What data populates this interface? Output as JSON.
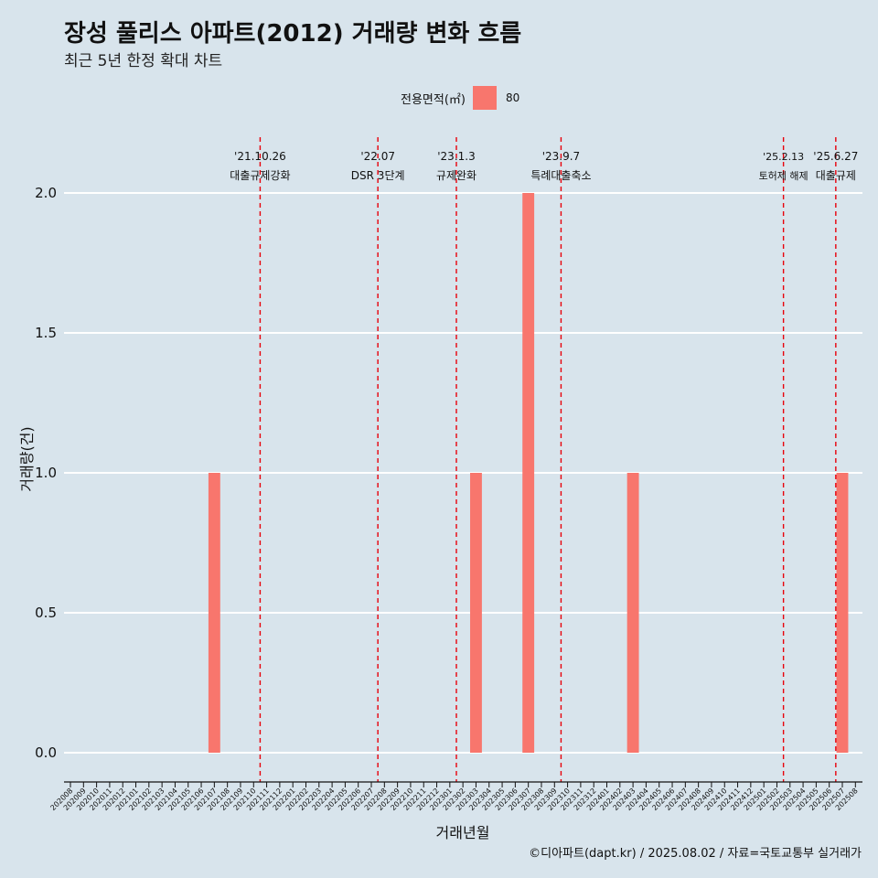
{
  "header": {
    "title": "장성 풀리스 아파트(2012) 거래량 변화 흐름",
    "subtitle": "최근 5년 한정 확대 차트"
  },
  "legend": {
    "title": "전용면적(㎡)",
    "item_label": "80",
    "color": "#f8766d"
  },
  "caption": "©디아파트(dapt.kr) / 2025.08.02 / 자료=국토교통부 실거래가",
  "chart_data": {
    "type": "bar",
    "xlabel": "거래년월",
    "ylabel": "거래량(건)",
    "ylim": [
      -0.1,
      2.2
    ],
    "y_ticks": [
      "0.0",
      "0.5",
      "1.0",
      "1.5",
      "2.0"
    ],
    "grid": "horizontal",
    "legend_position": "top",
    "bar_color": "#f8766d",
    "categories": [
      "202008",
      "202009",
      "202010",
      "202011",
      "202012",
      "202101",
      "202102",
      "202103",
      "202104",
      "202105",
      "202106",
      "202107",
      "202108",
      "202109",
      "202110",
      "202111",
      "202112",
      "202201",
      "202202",
      "202203",
      "202204",
      "202205",
      "202206",
      "202207",
      "202208",
      "202209",
      "202210",
      "202211",
      "202212",
      "202301",
      "202302",
      "202303",
      "202304",
      "202305",
      "202306",
      "202307",
      "202308",
      "202309",
      "202310",
      "202311",
      "202312",
      "202401",
      "202402",
      "202403",
      "202404",
      "202405",
      "202406",
      "202407",
      "202408",
      "202409",
      "202410",
      "202411",
      "202412",
      "202501",
      "202502",
      "202503",
      "202504",
      "202505",
      "202506",
      "202507",
      "202508"
    ],
    "series": [
      {
        "name": "80",
        "values": [
          0,
          0,
          0,
          0,
          0,
          0,
          0,
          0,
          0,
          0,
          0,
          1,
          0,
          0,
          0,
          0,
          0,
          0,
          0,
          0,
          0,
          0,
          0,
          0,
          0,
          0,
          0,
          0,
          0,
          0,
          0,
          1,
          0,
          0,
          0,
          2,
          0,
          0,
          0,
          0,
          0,
          0,
          0,
          1,
          0,
          0,
          0,
          0,
          0,
          0,
          0,
          0,
          0,
          0,
          0,
          0,
          0,
          0,
          0,
          1,
          0
        ]
      }
    ],
    "annotations": [
      {
        "x": 14.5,
        "date": "'21.10.26",
        "label": "대출규제강화"
      },
      {
        "x": 23.5,
        "date": "'22.07",
        "label": "DSR 3단계"
      },
      {
        "x": 29.5,
        "date": "'23.1.3",
        "label": "규제완화"
      },
      {
        "x": 37.5,
        "date": "'23.9.7",
        "label": "특례대출축소"
      },
      {
        "x": 54.5,
        "date": "'25.2.13",
        "label": "토허제 해제",
        "small": true
      },
      {
        "x": 58.5,
        "date": "'25.6.27",
        "label": "대출규제"
      }
    ]
  }
}
